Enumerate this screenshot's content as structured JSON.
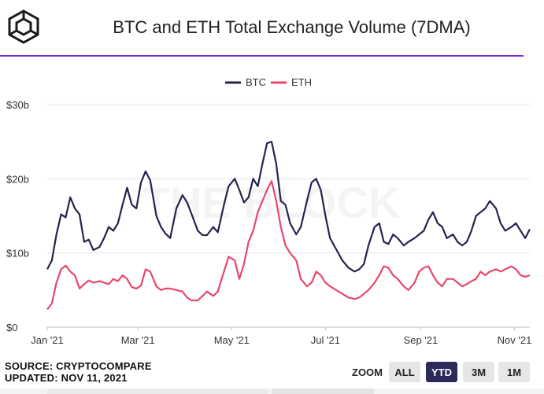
{
  "header": {
    "title": "BTC and ETH Total Exchange Volume (7DMA)"
  },
  "colors": {
    "btc": "#26234f",
    "eth": "#e8476c",
    "accent_rule": "#7b2bd0",
    "zoom_active": "#2c2a5b",
    "zoom_inactive": "#e6e6e6"
  },
  "icons": [
    "theblock-cube-logo"
  ],
  "footer": {
    "source": "SOURCE: CRYPTOCOMPARE",
    "updated": "UPDATED: NOV 11, 2021"
  },
  "zoom": {
    "label": "ZOOM",
    "options": [
      "ALL",
      "YTD",
      "3M",
      "1M"
    ],
    "selected": "YTD"
  },
  "chart_data": {
    "type": "line",
    "title": "BTC and ETH Total Exchange Volume (7DMA)",
    "xlabel": "",
    "ylabel": "",
    "ylim": [
      0,
      30
    ],
    "y_ticks": [
      0,
      10,
      20,
      30
    ],
    "y_tick_labels": [
      "$0",
      "$10b",
      "$20b",
      "$30b"
    ],
    "x_range": [
      "2021-01-01",
      "2021-11-11"
    ],
    "x_ticks": [
      "2021-01-01",
      "2021-03-01",
      "2021-05-01",
      "2021-07-01",
      "2021-09-01",
      "2021-11-01"
    ],
    "x_tick_labels": [
      "Jan '21",
      "Mar '21",
      "May '21",
      "Jul '21",
      "Sep '21",
      "Nov '21"
    ],
    "grid": "horizontal",
    "legend": "top-center",
    "watermark": "THE BLOCK",
    "series": [
      {
        "name": "BTC",
        "color": "#26234f",
        "points": [
          [
            "2021-01-01",
            7.8
          ],
          [
            "2021-01-04",
            9.0
          ],
          [
            "2021-01-07",
            12.5
          ],
          [
            "2021-01-10",
            15.2
          ],
          [
            "2021-01-13",
            14.8
          ],
          [
            "2021-01-16",
            17.5
          ],
          [
            "2021-01-19",
            16.0
          ],
          [
            "2021-01-22",
            15.2
          ],
          [
            "2021-01-25",
            11.5
          ],
          [
            "2021-01-28",
            11.8
          ],
          [
            "2021-01-31",
            10.4
          ],
          [
            "2021-02-04",
            10.8
          ],
          [
            "2021-02-07",
            12.0
          ],
          [
            "2021-02-10",
            13.5
          ],
          [
            "2021-02-13",
            13.0
          ],
          [
            "2021-02-16",
            14.0
          ],
          [
            "2021-02-19",
            16.5
          ],
          [
            "2021-02-22",
            18.8
          ],
          [
            "2021-02-25",
            16.5
          ],
          [
            "2021-02-28",
            16.0
          ],
          [
            "2021-03-03",
            19.5
          ],
          [
            "2021-03-06",
            21.0
          ],
          [
            "2021-03-09",
            19.8
          ],
          [
            "2021-03-13",
            15.0
          ],
          [
            "2021-03-16",
            13.5
          ],
          [
            "2021-03-19",
            12.6
          ],
          [
            "2021-03-22",
            12.0
          ],
          [
            "2021-03-26",
            16.0
          ],
          [
            "2021-03-30",
            17.8
          ],
          [
            "2021-04-02",
            16.8
          ],
          [
            "2021-04-05",
            15.2
          ],
          [
            "2021-04-09",
            13.0
          ],
          [
            "2021-04-12",
            12.4
          ],
          [
            "2021-04-15",
            12.4
          ],
          [
            "2021-04-19",
            13.5
          ],
          [
            "2021-04-22",
            12.8
          ],
          [
            "2021-04-26",
            16.5
          ],
          [
            "2021-04-29",
            19.0
          ],
          [
            "2021-05-03",
            20.0
          ],
          [
            "2021-05-06",
            18.5
          ],
          [
            "2021-05-09",
            16.8
          ],
          [
            "2021-05-12",
            17.5
          ],
          [
            "2021-05-15",
            20.0
          ],
          [
            "2021-05-18",
            19.0
          ],
          [
            "2021-05-21",
            22.0
          ],
          [
            "2021-05-24",
            24.8
          ],
          [
            "2021-05-27",
            25.0
          ],
          [
            "2021-05-30",
            22.0
          ],
          [
            "2021-06-02",
            17.0
          ],
          [
            "2021-06-05",
            16.5
          ],
          [
            "2021-06-08",
            14.0
          ],
          [
            "2021-06-12",
            12.5
          ],
          [
            "2021-06-15",
            13.5
          ],
          [
            "2021-06-19",
            17.0
          ],
          [
            "2021-06-22",
            19.5
          ],
          [
            "2021-06-25",
            20.0
          ],
          [
            "2021-06-28",
            18.5
          ],
          [
            "2021-07-01",
            15.0
          ],
          [
            "2021-07-04",
            12.0
          ],
          [
            "2021-07-08",
            10.5
          ],
          [
            "2021-07-12",
            9.0
          ],
          [
            "2021-07-16",
            8.0
          ],
          [
            "2021-07-20",
            7.5
          ],
          [
            "2021-07-23",
            7.8
          ],
          [
            "2021-07-26",
            8.5
          ],
          [
            "2021-07-29",
            11.0
          ],
          [
            "2021-08-02",
            13.5
          ],
          [
            "2021-08-05",
            14.0
          ],
          [
            "2021-08-08",
            11.5
          ],
          [
            "2021-08-11",
            11.2
          ],
          [
            "2021-08-14",
            12.5
          ],
          [
            "2021-08-17",
            12.0
          ],
          [
            "2021-08-21",
            11.0
          ],
          [
            "2021-08-24",
            11.5
          ],
          [
            "2021-08-28",
            12.0
          ],
          [
            "2021-08-31",
            12.5
          ],
          [
            "2021-09-03",
            13.0
          ],
          [
            "2021-09-06",
            14.5
          ],
          [
            "2021-09-09",
            15.5
          ],
          [
            "2021-09-12",
            14.0
          ],
          [
            "2021-09-15",
            13.5
          ],
          [
            "2021-09-18",
            12.0
          ],
          [
            "2021-09-22",
            12.5
          ],
          [
            "2021-09-25",
            11.5
          ],
          [
            "2021-09-28",
            11.0
          ],
          [
            "2021-10-01",
            11.5
          ],
          [
            "2021-10-04",
            13.0
          ],
          [
            "2021-10-07",
            15.0
          ],
          [
            "2021-10-10",
            15.5
          ],
          [
            "2021-10-13",
            16.0
          ],
          [
            "2021-10-16",
            17.0
          ],
          [
            "2021-10-20",
            16.0
          ],
          [
            "2021-10-23",
            14.0
          ],
          [
            "2021-10-26",
            13.0
          ],
          [
            "2021-10-30",
            13.5
          ],
          [
            "2021-11-02",
            14.0
          ],
          [
            "2021-11-05",
            13.0
          ],
          [
            "2021-11-08",
            12.0
          ],
          [
            "2021-11-11",
            13.2
          ]
        ]
      },
      {
        "name": "ETH",
        "color": "#e8476c",
        "points": [
          [
            "2021-01-01",
            2.4
          ],
          [
            "2021-01-04",
            3.2
          ],
          [
            "2021-01-07",
            6.0
          ],
          [
            "2021-01-10",
            7.8
          ],
          [
            "2021-01-13",
            8.3
          ],
          [
            "2021-01-16",
            7.5
          ],
          [
            "2021-01-19",
            7.0
          ],
          [
            "2021-01-22",
            5.2
          ],
          [
            "2021-01-25",
            5.8
          ],
          [
            "2021-01-28",
            6.3
          ],
          [
            "2021-01-31",
            6.0
          ],
          [
            "2021-02-04",
            6.2
          ],
          [
            "2021-02-07",
            6.0
          ],
          [
            "2021-02-10",
            5.8
          ],
          [
            "2021-02-13",
            6.5
          ],
          [
            "2021-02-16",
            6.2
          ],
          [
            "2021-02-19",
            7.0
          ],
          [
            "2021-02-22",
            6.5
          ],
          [
            "2021-02-25",
            5.4
          ],
          [
            "2021-02-28",
            5.2
          ],
          [
            "2021-03-03",
            5.6
          ],
          [
            "2021-03-06",
            7.8
          ],
          [
            "2021-03-09",
            7.5
          ],
          [
            "2021-03-13",
            5.5
          ],
          [
            "2021-03-16",
            5.0
          ],
          [
            "2021-03-19",
            5.2
          ],
          [
            "2021-03-22",
            5.2
          ],
          [
            "2021-03-26",
            5.0
          ],
          [
            "2021-03-30",
            4.8
          ],
          [
            "2021-04-02",
            4.0
          ],
          [
            "2021-04-05",
            3.6
          ],
          [
            "2021-04-09",
            3.6
          ],
          [
            "2021-04-12",
            4.2
          ],
          [
            "2021-04-15",
            4.8
          ],
          [
            "2021-04-19",
            4.2
          ],
          [
            "2021-04-22",
            4.8
          ],
          [
            "2021-04-26",
            7.5
          ],
          [
            "2021-04-29",
            9.5
          ],
          [
            "2021-05-03",
            9.0
          ],
          [
            "2021-05-06",
            6.5
          ],
          [
            "2021-05-09",
            8.5
          ],
          [
            "2021-05-12",
            11.5
          ],
          [
            "2021-05-15",
            13.0
          ],
          [
            "2021-05-18",
            15.5
          ],
          [
            "2021-05-21",
            17.0
          ],
          [
            "2021-05-24",
            18.5
          ],
          [
            "2021-05-27",
            19.7
          ],
          [
            "2021-05-30",
            17.0
          ],
          [
            "2021-06-02",
            13.5
          ],
          [
            "2021-06-05",
            11.0
          ],
          [
            "2021-06-08",
            10.0
          ],
          [
            "2021-06-12",
            9.0
          ],
          [
            "2021-06-15",
            6.5
          ],
          [
            "2021-06-19",
            5.5
          ],
          [
            "2021-06-22",
            6.0
          ],
          [
            "2021-06-25",
            7.5
          ],
          [
            "2021-06-28",
            7.0
          ],
          [
            "2021-07-01",
            6.0
          ],
          [
            "2021-07-04",
            5.5
          ],
          [
            "2021-07-08",
            5.0
          ],
          [
            "2021-07-12",
            4.5
          ],
          [
            "2021-07-16",
            4.0
          ],
          [
            "2021-07-20",
            3.8
          ],
          [
            "2021-07-23",
            4.0
          ],
          [
            "2021-07-26",
            4.5
          ],
          [
            "2021-07-29",
            5.0
          ],
          [
            "2021-08-02",
            6.0
          ],
          [
            "2021-08-05",
            7.0
          ],
          [
            "2021-08-08",
            8.2
          ],
          [
            "2021-08-11",
            8.0
          ],
          [
            "2021-08-14",
            7.0
          ],
          [
            "2021-08-17",
            6.5
          ],
          [
            "2021-08-21",
            5.5
          ],
          [
            "2021-08-24",
            5.0
          ],
          [
            "2021-08-28",
            6.0
          ],
          [
            "2021-08-31",
            7.5
          ],
          [
            "2021-09-03",
            8.0
          ],
          [
            "2021-09-06",
            8.2
          ],
          [
            "2021-09-09",
            7.0
          ],
          [
            "2021-09-12",
            6.0
          ],
          [
            "2021-09-15",
            5.5
          ],
          [
            "2021-09-18",
            6.5
          ],
          [
            "2021-09-22",
            6.5
          ],
          [
            "2021-09-25",
            6.0
          ],
          [
            "2021-09-28",
            5.5
          ],
          [
            "2021-10-01",
            5.8
          ],
          [
            "2021-10-04",
            6.2
          ],
          [
            "2021-10-07",
            6.5
          ],
          [
            "2021-10-10",
            7.5
          ],
          [
            "2021-10-13",
            7.0
          ],
          [
            "2021-10-16",
            7.5
          ],
          [
            "2021-10-20",
            7.8
          ],
          [
            "2021-10-23",
            7.5
          ],
          [
            "2021-10-26",
            7.8
          ],
          [
            "2021-10-30",
            8.2
          ],
          [
            "2021-11-02",
            7.8
          ],
          [
            "2021-11-05",
            7.0
          ],
          [
            "2021-11-08",
            6.8
          ],
          [
            "2021-11-11",
            7.0
          ]
        ]
      }
    ]
  }
}
